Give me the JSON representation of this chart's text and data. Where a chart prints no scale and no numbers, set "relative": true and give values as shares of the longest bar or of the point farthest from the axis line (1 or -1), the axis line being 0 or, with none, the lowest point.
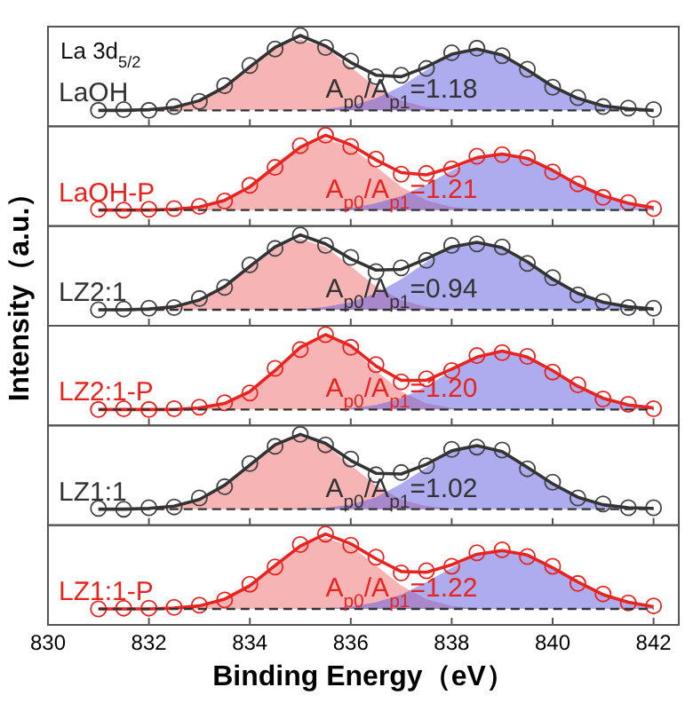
{
  "chart_data": [
    {
      "type": "line",
      "relative": true,
      "title": "LaOH",
      "annotations": [
        "La 3d$_{5/2}$",
        "A$_{p0}$/A$_{p1}$=1.18"
      ],
      "xlim": [
        830,
        842.5
      ],
      "xticks": [
        830,
        832,
        834,
        836,
        838,
        840,
        842
      ],
      "tick_labels": false,
      "grid": false,
      "x": [
        831,
        831.5,
        832,
        832.5,
        833,
        833.5,
        834,
        834.5,
        835,
        835.5,
        836,
        836.5,
        837,
        837.5,
        838,
        838.5,
        839,
        839.5,
        840,
        840.5,
        841,
        841.5,
        842
      ],
      "series": [
        {
          "type": "area",
          "color": "#f06a6a",
          "values": [
            0,
            0,
            0.01,
            0.04,
            0.13,
            0.31,
            0.58,
            0.84,
            0.95,
            0.84,
            0.58,
            0.31,
            0.13,
            0.04,
            0.01,
            0,
            0,
            0,
            0,
            0,
            0,
            0,
            0
          ]
        },
        {
          "type": "area",
          "color": "#5a5ae0",
          "values": [
            0,
            0,
            0,
            0,
            0,
            0,
            0,
            0,
            0,
            0.02,
            0.06,
            0.16,
            0.32,
            0.54,
            0.74,
            0.82,
            0.74,
            0.54,
            0.32,
            0.16,
            0.06,
            0.02,
            0
          ]
        },
        {
          "type": "line",
          "color": "#333333",
          "line_style": "solid",
          "values": [
            0,
            0,
            0.01,
            0.04,
            0.13,
            0.31,
            0.58,
            0.84,
            1,
            0.86,
            0.64,
            0.47,
            0.45,
            0.58,
            0.75,
            0.82,
            0.74,
            0.54,
            0.32,
            0.16,
            0.06,
            0.02,
            0
          ]
        },
        {
          "type": "scatter",
          "color": "#444444",
          "marker": "circle",
          "values": [
            0,
            0.01,
            0,
            0.05,
            0.12,
            0.33,
            0.6,
            0.82,
            1,
            0.84,
            0.66,
            0.45,
            0.47,
            0.56,
            0.77,
            0.83,
            0.73,
            0.55,
            0.31,
            0.17,
            0.05,
            0.03,
            0.01
          ]
        }
      ],
      "ref_lines": [
        {
          "axis": "y",
          "value": 0,
          "color": "#333333",
          "line_style": "dashed"
        }
      ],
      "legend": false
    },
    {
      "type": "line",
      "relative": true,
      "title": "LaOH-P",
      "annotations": [
        "A$_{p0}$/A$_{p1}$=1.21"
      ],
      "xlim": [
        830,
        842.5
      ],
      "xticks": [
        830,
        832,
        834,
        836,
        838,
        840,
        842
      ],
      "tick_labels": false,
      "grid": false,
      "x": [
        831,
        831.5,
        832,
        832.5,
        833,
        833.5,
        834,
        834.5,
        835,
        835.5,
        836,
        836.5,
        837,
        837.5,
        838,
        838.5,
        839,
        839.5,
        840,
        840.5,
        841,
        841.5,
        842
      ],
      "series": [
        {
          "type": "area",
          "color": "#f06a6a",
          "values": [
            0,
            0,
            0,
            0.01,
            0.04,
            0.13,
            0.31,
            0.58,
            0.84,
            0.95,
            0.84,
            0.58,
            0.31,
            0.13,
            0.04,
            0.01,
            0,
            0,
            0,
            0,
            0,
            0,
            0
          ]
        },
        {
          "type": "area",
          "color": "#5a5ae0",
          "values": [
            0,
            0,
            0,
            0,
            0,
            0,
            0,
            0,
            0,
            0.01,
            0.03,
            0.09,
            0.19,
            0.34,
            0.53,
            0.69,
            0.75,
            0.69,
            0.53,
            0.34,
            0.19,
            0.09,
            0.03
          ]
        },
        {
          "type": "line",
          "color": "#e82420",
          "line_style": "solid",
          "values": [
            0,
            0,
            0,
            0.01,
            0.04,
            0.13,
            0.31,
            0.58,
            0.84,
            1,
            0.87,
            0.67,
            0.5,
            0.47,
            0.57,
            0.7,
            0.75,
            0.69,
            0.53,
            0.34,
            0.19,
            0.09,
            0.03
          ]
        },
        {
          "type": "scatter",
          "color": "#e82420",
          "marker": "circle",
          "values": [
            0.01,
            0,
            0.01,
            0.02,
            0.05,
            0.12,
            0.33,
            0.57,
            0.86,
            1,
            0.85,
            0.68,
            0.48,
            0.49,
            0.55,
            0.72,
            0.74,
            0.7,
            0.51,
            0.35,
            0.17,
            0.1,
            0.02
          ]
        }
      ],
      "ref_lines": [
        {
          "axis": "y",
          "value": 0,
          "color": "#333333",
          "line_style": "dashed"
        }
      ],
      "legend": false
    },
    {
      "type": "line",
      "relative": true,
      "title": "LZ2:1",
      "annotations": [
        "A$_{p0}$/A$_{p1}$=0.94"
      ],
      "xlim": [
        830,
        842.5
      ],
      "xticks": [
        830,
        832,
        834,
        836,
        838,
        840,
        842
      ],
      "tick_labels": false,
      "grid": false,
      "x": [
        831,
        831.5,
        832,
        832.5,
        833,
        833.5,
        834,
        834.5,
        835,
        835.5,
        836,
        836.5,
        837,
        837.5,
        838,
        838.5,
        839,
        839.5,
        840,
        840.5,
        841,
        841.5,
        842
      ],
      "series": [
        {
          "type": "area",
          "color": "#f06a6a",
          "values": [
            0,
            0,
            0.01,
            0.04,
            0.13,
            0.31,
            0.58,
            0.84,
            0.95,
            0.84,
            0.58,
            0.31,
            0.13,
            0.04,
            0.01,
            0,
            0,
            0,
            0,
            0,
            0,
            0,
            0
          ]
        },
        {
          "type": "area",
          "color": "#5a5ae0",
          "values": [
            0,
            0,
            0,
            0,
            0,
            0,
            0,
            0,
            0.01,
            0.04,
            0.1,
            0.22,
            0.41,
            0.64,
            0.83,
            0.9,
            0.83,
            0.64,
            0.41,
            0.22,
            0.1,
            0.04,
            0.01
          ]
        },
        {
          "type": "line",
          "color": "#333333",
          "line_style": "solid",
          "values": [
            0,
            0,
            0.01,
            0.04,
            0.13,
            0.31,
            0.58,
            0.84,
            1,
            0.88,
            0.68,
            0.53,
            0.54,
            0.68,
            0.84,
            0.9,
            0.83,
            0.64,
            0.41,
            0.22,
            0.1,
            0.04,
            0.01
          ]
        },
        {
          "type": "scatter",
          "color": "#444444",
          "marker": "circle",
          "values": [
            0,
            0.01,
            0.02,
            0.03,
            0.15,
            0.3,
            0.6,
            0.82,
            1,
            0.86,
            0.7,
            0.51,
            0.56,
            0.66,
            0.86,
            0.88,
            0.84,
            0.62,
            0.43,
            0.2,
            0.11,
            0.03,
            0.02
          ]
        }
      ],
      "ref_lines": [
        {
          "axis": "y",
          "value": 0,
          "color": "#333333",
          "line_style": "dashed"
        }
      ],
      "legend": false
    },
    {
      "type": "line",
      "relative": true,
      "title": "LZ2:1-P",
      "ylabel": "Intensity（a.u.）",
      "annotations": [
        "A$_{p0}$/A$_{p1}$=1.20"
      ],
      "xlim": [
        830,
        842.5
      ],
      "xticks": [
        830,
        832,
        834,
        836,
        838,
        840,
        842
      ],
      "tick_labels": false,
      "grid": false,
      "x": [
        831,
        831.5,
        832,
        832.5,
        833,
        833.5,
        834,
        834.5,
        835,
        835.5,
        836,
        836.5,
        837,
        837.5,
        838,
        838.5,
        839,
        839.5,
        840,
        840.5,
        841,
        841.5,
        842
      ],
      "series": [
        {
          "type": "area",
          "color": "#f06a6a",
          "values": [
            0,
            0,
            0,
            0,
            0.02,
            0.08,
            0.24,
            0.52,
            0.83,
            0.97,
            0.83,
            0.52,
            0.24,
            0.08,
            0.02,
            0,
            0,
            0,
            0,
            0,
            0,
            0,
            0
          ]
        },
        {
          "type": "area",
          "color": "#5a5ae0",
          "values": [
            0,
            0,
            0,
            0,
            0,
            0,
            0,
            0,
            0,
            0,
            0.02,
            0.06,
            0.15,
            0.31,
            0.52,
            0.7,
            0.78,
            0.7,
            0.52,
            0.31,
            0.15,
            0.06,
            0.02
          ]
        },
        {
          "type": "line",
          "color": "#e82420",
          "line_style": "solid",
          "values": [
            0,
            0,
            0,
            0,
            0.02,
            0.08,
            0.24,
            0.52,
            0.83,
            1,
            0.85,
            0.58,
            0.39,
            0.39,
            0.54,
            0.7,
            0.78,
            0.7,
            0.52,
            0.31,
            0.15,
            0.06,
            0.02
          ]
        },
        {
          "type": "scatter",
          "color": "#e82420",
          "marker": "circle",
          "values": [
            0,
            0.01,
            0,
            0.01,
            0.03,
            0.09,
            0.22,
            0.55,
            0.8,
            1,
            0.83,
            0.6,
            0.37,
            0.41,
            0.52,
            0.72,
            0.76,
            0.71,
            0.5,
            0.33,
            0.14,
            0.07,
            0.01
          ]
        }
      ],
      "ref_lines": [
        {
          "axis": "y",
          "value": 0,
          "color": "#333333",
          "line_style": "dashed"
        }
      ],
      "legend": false
    },
    {
      "type": "line",
      "relative": true,
      "title": "LZ1:1",
      "annotations": [
        "A$_{p0}$/A$_{p1}$=1.02"
      ],
      "xlim": [
        830,
        842.5
      ],
      "xticks": [
        830,
        832,
        834,
        836,
        838,
        840,
        842
      ],
      "tick_labels": false,
      "grid": false,
      "x": [
        831,
        831.5,
        832,
        832.5,
        833,
        833.5,
        834,
        834.5,
        835,
        835.5,
        836,
        836.5,
        837,
        837.5,
        838,
        838.5,
        839,
        839.5,
        840,
        840.5,
        841,
        841.5,
        842
      ],
      "series": [
        {
          "type": "area",
          "color": "#f06a6a",
          "values": [
            0,
            0,
            0.01,
            0.04,
            0.13,
            0.32,
            0.59,
            0.86,
            0.97,
            0.86,
            0.59,
            0.32,
            0.13,
            0.04,
            0.01,
            0,
            0,
            0,
            0,
            0,
            0,
            0,
            0
          ]
        },
        {
          "type": "area",
          "color": "#5a5ae0",
          "values": [
            0,
            0,
            0,
            0,
            0,
            0,
            0,
            0,
            0.01,
            0.02,
            0.06,
            0.16,
            0.34,
            0.56,
            0.77,
            0.85,
            0.77,
            0.56,
            0.34,
            0.16,
            0.06,
            0.02,
            0.01
          ]
        },
        {
          "type": "line",
          "color": "#333333",
          "line_style": "solid",
          "values": [
            0,
            0,
            0.01,
            0.04,
            0.13,
            0.32,
            0.59,
            0.86,
            1,
            0.88,
            0.65,
            0.48,
            0.47,
            0.6,
            0.78,
            0.85,
            0.77,
            0.56,
            0.34,
            0.16,
            0.06,
            0.02,
            0.01
          ]
        },
        {
          "type": "scatter",
          "color": "#444444",
          "marker": "circle",
          "values": [
            0.01,
            0,
            0.02,
            0.03,
            0.15,
            0.3,
            0.61,
            0.84,
            1,
            0.86,
            0.67,
            0.46,
            0.49,
            0.58,
            0.8,
            0.83,
            0.79,
            0.54,
            0.36,
            0.15,
            0.07,
            0.02,
            0.02
          ]
        }
      ],
      "ref_lines": [
        {
          "axis": "y",
          "value": 0,
          "color": "#333333",
          "line_style": "dashed"
        }
      ],
      "legend": false
    },
    {
      "type": "line",
      "relative": true,
      "title": "LZ1:1-P",
      "xlabel": "Binding Energy（eV）",
      "annotations": [
        "A$_{p0}$/A$_{p1}$=1.22"
      ],
      "xlim": [
        830,
        842.5
      ],
      "xticks": [
        830,
        832,
        834,
        836,
        838,
        840,
        842
      ],
      "tick_labels": "x",
      "grid": false,
      "x": [
        831,
        831.5,
        832,
        832.5,
        833,
        833.5,
        834,
        834.5,
        835,
        835.5,
        836,
        836.5,
        837,
        837.5,
        838,
        838.5,
        839,
        839.5,
        840,
        840.5,
        841,
        841.5,
        842
      ],
      "series": [
        {
          "type": "area",
          "color": "#f06a6a",
          "values": [
            0,
            0,
            0,
            0.01,
            0.04,
            0.13,
            0.31,
            0.58,
            0.84,
            0.95,
            0.84,
            0.58,
            0.31,
            0.13,
            0.04,
            0.01,
            0,
            0,
            0,
            0,
            0,
            0,
            0
          ]
        },
        {
          "type": "area",
          "color": "#5a5ae0",
          "values": [
            0,
            0,
            0,
            0,
            0,
            0,
            0,
            0,
            0,
            0.01,
            0.03,
            0.09,
            0.19,
            0.36,
            0.55,
            0.72,
            0.78,
            0.72,
            0.55,
            0.36,
            0.19,
            0.09,
            0.03
          ]
        },
        {
          "type": "line",
          "color": "#e82420",
          "line_style": "solid",
          "values": [
            0,
            0,
            0,
            0.01,
            0.04,
            0.13,
            0.31,
            0.58,
            0.84,
            1,
            0.87,
            0.67,
            0.5,
            0.49,
            0.59,
            0.73,
            0.78,
            0.72,
            0.55,
            0.36,
            0.19,
            0.09,
            0.03
          ]
        },
        {
          "type": "scatter",
          "color": "#e82420",
          "marker": "circle",
          "values": [
            0,
            0.01,
            0.01,
            0.02,
            0.05,
            0.12,
            0.33,
            0.56,
            0.86,
            1,
            0.85,
            0.69,
            0.48,
            0.51,
            0.57,
            0.75,
            0.79,
            0.7,
            0.57,
            0.34,
            0.2,
            0.08,
            0.04
          ]
        }
      ],
      "ref_lines": [
        {
          "axis": "y",
          "value": 0,
          "color": "#333333",
          "line_style": "dashed"
        }
      ],
      "legend": false
    }
  ]
}
